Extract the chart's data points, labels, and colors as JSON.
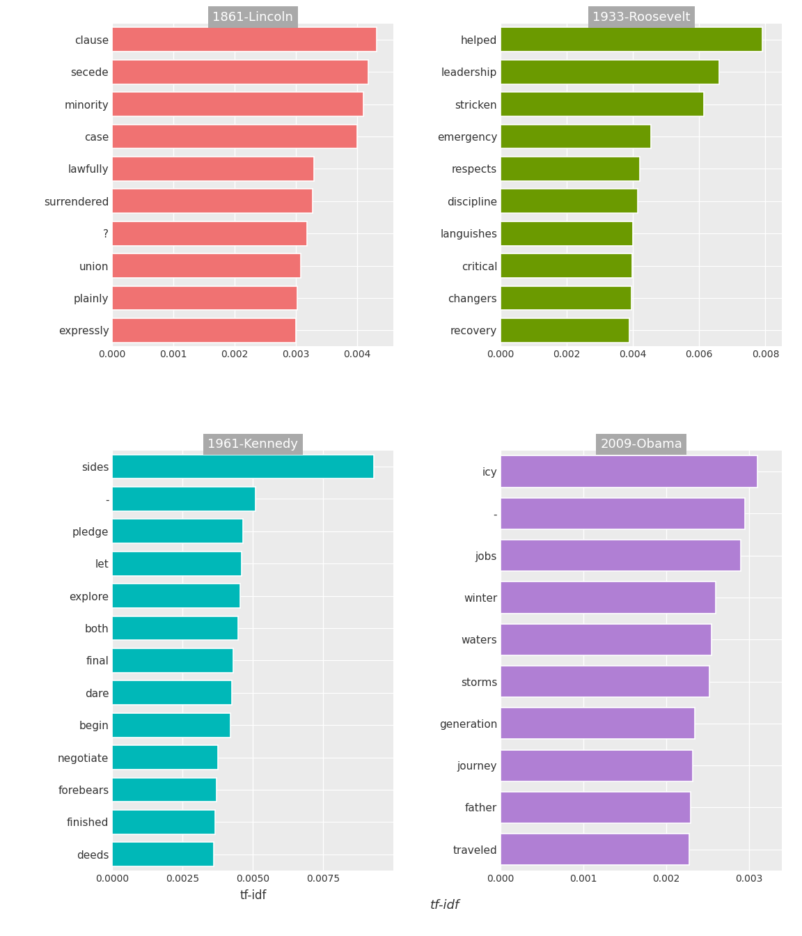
{
  "panels": [
    {
      "title": "1861-Lincoln",
      "color": "#F07272",
      "terms": [
        "clause",
        "secede",
        "minority",
        "case",
        "lawfully",
        "surrendered",
        "?",
        "union",
        "plainly",
        "expressly"
      ],
      "values": [
        0.00432,
        0.00418,
        0.0041,
        0.004,
        0.0033,
        0.00328,
        0.00318,
        0.00308,
        0.00302,
        0.003
      ],
      "xlim": [
        0,
        0.0046
      ],
      "xticks": [
        0.0,
        0.001,
        0.002,
        0.003,
        0.004
      ],
      "xticklabels": [
        "0.000",
        "0.001",
        "0.002",
        "0.003",
        "0.004"
      ]
    },
    {
      "title": "1933-Roosevelt",
      "color": "#6B9A00",
      "terms": [
        "helped",
        "leadership",
        "stricken",
        "emergency",
        "respects",
        "discipline",
        "languishes",
        "critical",
        "changers",
        "recovery"
      ],
      "values": [
        0.0079,
        0.0066,
        0.00615,
        0.00455,
        0.0042,
        0.00415,
        0.004,
        0.00398,
        0.00395,
        0.0039
      ],
      "xlim": [
        0,
        0.0085
      ],
      "xticks": [
        0.0,
        0.002,
        0.004,
        0.006,
        0.008
      ],
      "xticklabels": [
        "0.000",
        "0.002",
        "0.004",
        "0.006",
        "0.008"
      ]
    },
    {
      "title": "1961-Kennedy",
      "color": "#00B8B8",
      "terms": [
        "sides",
        "-",
        "pledge",
        "let",
        "explore",
        "both",
        "final",
        "dare",
        "begin",
        "negotiate",
        "forebears",
        "finished",
        "deeds"
      ],
      "values": [
        0.0093,
        0.0051,
        0.00465,
        0.0046,
        0.00455,
        0.00448,
        0.0043,
        0.00425,
        0.0042,
        0.00375,
        0.0037,
        0.00365,
        0.0036
      ],
      "xlim": [
        0,
        0.01
      ],
      "xticks": [
        0.0,
        0.0025,
        0.005,
        0.0075
      ],
      "xticklabels": [
        "0.0000",
        "0.0025",
        "0.0050",
        "0.0075"
      ]
    },
    {
      "title": "2009-Obama",
      "color": "#B07FD4",
      "terms": [
        "icy",
        "-",
        "jobs",
        "winter",
        "waters",
        "storms",
        "generation",
        "journey",
        "father",
        "traveled"
      ],
      "values": [
        0.0031,
        0.00295,
        0.0029,
        0.0026,
        0.00255,
        0.00252,
        0.00235,
        0.00232,
        0.0023,
        0.00228
      ],
      "xlim": [
        0,
        0.0034
      ],
      "xticks": [
        0.0,
        0.001,
        0.002,
        0.003
      ],
      "xticklabels": [
        "0.000",
        "0.001",
        "0.002",
        "0.003"
      ]
    }
  ],
  "background_color": "#EBEBEB",
  "grid_color": "#FFFFFF",
  "bar_height": 0.75,
  "xlabel": "tf-idf",
  "title_fontsize": 13,
  "label_fontsize": 11,
  "tick_fontsize": 10,
  "title_bg_color": "#A9A9A9"
}
